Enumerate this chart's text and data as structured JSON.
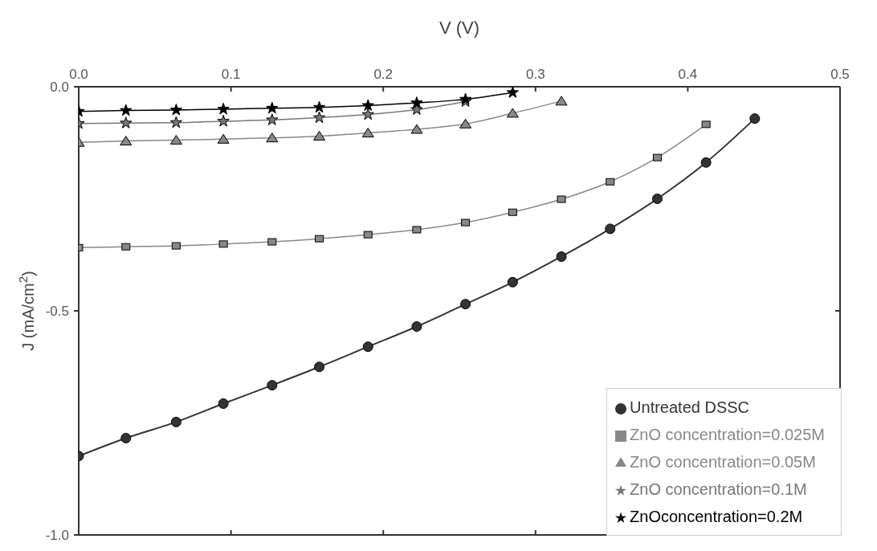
{
  "chart_data": {
    "type": "line",
    "xlabel": "V (V)",
    "ylabel": "J (mA/cm$^{2}$)",
    "xlim": [
      0,
      0.5
    ],
    "xticks": [
      {
        "value": 0,
        "label": "0.0"
      },
      {
        "value": 0.1,
        "label": "0.1"
      },
      {
        "value": 0.2,
        "label": "0.2"
      },
      {
        "value": 0.3,
        "label": "0.3"
      },
      {
        "value": 0.4,
        "label": "0.4"
      },
      {
        "value": 0.5,
        "label": "0.5"
      }
    ],
    "ylim": [
      -1,
      0
    ],
    "yticks": [
      {
        "value": 0,
        "label": "0.0"
      },
      {
        "value": -0.5,
        "label": "-0.5"
      },
      {
        "value": -1,
        "label": "-1.0"
      }
    ],
    "grid": false,
    "legend": "bottom right",
    "line_style": "solid",
    "series": [
      {
        "name": "Untreated DSSC",
        "color": "#333333",
        "marker": "circle",
        "x": [
          0,
          0.031,
          0.064,
          0.095,
          0.127,
          0.158,
          0.19,
          0.222,
          0.254,
          0.285,
          0.317,
          0.349,
          0.38,
          0.412,
          0.444
        ],
        "values": [
          -0.824,
          -0.784,
          -0.748,
          -0.707,
          -0.666,
          -0.625,
          -0.58,
          -0.535,
          -0.485,
          -0.436,
          -0.379,
          -0.317,
          -0.25,
          -0.169,
          -0.071
        ]
      },
      {
        "name": "ZnO concentration=0.025M",
        "color": "#888888",
        "marker": "square",
        "x": [
          0,
          0.031,
          0.064,
          0.095,
          0.127,
          0.158,
          0.19,
          0.222,
          0.254,
          0.285,
          0.317,
          0.349,
          0.38,
          0.412
        ],
        "values": [
          -0.359,
          -0.357,
          -0.355,
          -0.351,
          -0.346,
          -0.339,
          -0.33,
          -0.319,
          -0.303,
          -0.28,
          -0.251,
          -0.212,
          -0.158,
          -0.084
        ]
      },
      {
        "name": "ZnO concentration=0.05M",
        "color": "#888888",
        "marker": "triangle",
        "x": [
          0,
          0.031,
          0.064,
          0.095,
          0.127,
          0.158,
          0.19,
          0.222,
          0.254,
          0.285,
          0.317
        ],
        "values": [
          -0.124,
          -0.121,
          -0.119,
          -0.117,
          -0.114,
          -0.11,
          -0.103,
          -0.095,
          -0.083,
          -0.059,
          -0.032
        ]
      },
      {
        "name": "ZnO concentration=0.1M",
        "color": "#777777",
        "marker": "star",
        "x": [
          0,
          0.031,
          0.064,
          0.095,
          0.127,
          0.158,
          0.19,
          0.222,
          0.254
        ],
        "values": [
          -0.082,
          -0.081,
          -0.08,
          -0.077,
          -0.074,
          -0.069,
          -0.062,
          -0.051,
          -0.033
        ]
      },
      {
        "name": "ZnOconcentration=0.2M",
        "color": "#000000",
        "marker": "star",
        "x": [
          0,
          0.031,
          0.064,
          0.095,
          0.127,
          0.158,
          0.19,
          0.222,
          0.254,
          0.285
        ],
        "values": [
          -0.055,
          -0.053,
          -0.052,
          -0.05,
          -0.048,
          -0.046,
          -0.042,
          -0.036,
          -0.028,
          -0.013
        ]
      }
    ]
  }
}
